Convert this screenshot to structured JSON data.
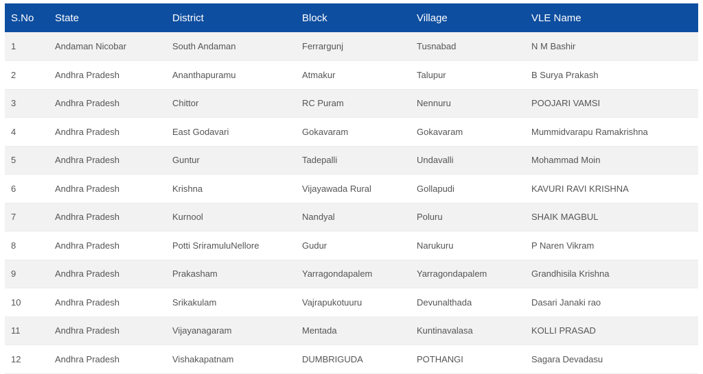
{
  "table": {
    "headers": [
      "S.No",
      "State",
      "District",
      "Block",
      "Village",
      "VLE Name"
    ],
    "rows": [
      [
        "1",
        "Andaman Nicobar",
        "South Andaman",
        "Ferrargunj",
        "Tusnabad",
        "N M Bashir"
      ],
      [
        "2",
        "Andhra Pradesh",
        "Ananthapuramu",
        "Atmakur",
        "Talupur",
        "B Surya Prakash"
      ],
      [
        "3",
        "Andhra Pradesh",
        "Chittor",
        "RC Puram",
        "Nennuru",
        "POOJARI VAMSI"
      ],
      [
        "4",
        "Andhra Pradesh",
        "East Godavari",
        "Gokavaram",
        "Gokavaram",
        "Mummidvarapu Ramakrishna"
      ],
      [
        "5",
        "Andhra Pradesh",
        "Guntur",
        "Tadepalli",
        "Undavalli",
        "Mohammad Moin"
      ],
      [
        "6",
        "Andhra Pradesh",
        "Krishna",
        "Vijayawada Rural",
        "Gollapudi",
        "KAVURI RAVI KRISHNA"
      ],
      [
        "7",
        "Andhra Pradesh",
        "Kurnool",
        "Nandyal",
        "Poluru",
        "SHAIK MAGBUL"
      ],
      [
        "8",
        "Andhra Pradesh",
        "Potti SriramuluNellore",
        "Gudur",
        "Narukuru",
        "P Naren Vikram"
      ],
      [
        "9",
        "Andhra Pradesh",
        "Prakasham",
        "Yarragondapalem",
        "Yarragondapalem",
        "Grandhisila Krishna"
      ],
      [
        "10",
        "Andhra Pradesh",
        "Srikakulam",
        "Vajrapukotuuru",
        "Devunalthada",
        "Dasari Janaki rao"
      ],
      [
        "11",
        "Andhra Pradesh",
        "Vijayanagaram",
        "Mentada",
        "Kuntinavalasa",
        "KOLLI PRASAD"
      ],
      [
        "12",
        "Andhra Pradesh",
        "Vishakapatnam",
        "DUMBRIGUDA",
        "POTHANGI",
        "Sagara Devadasu"
      ]
    ]
  },
  "colors": {
    "header_bg": "#0e4ea0",
    "header_text": "#ffffff",
    "row_odd": "#f2f2f2",
    "row_even": "#ffffff",
    "cell_text": "#555555"
  }
}
